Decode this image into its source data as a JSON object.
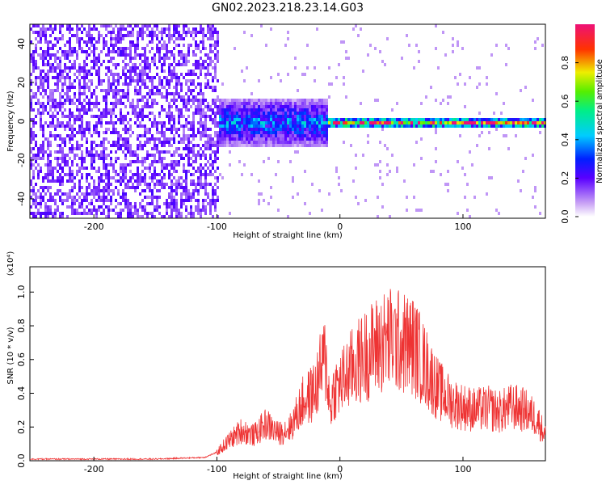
{
  "title": "GN02.2023.218.23.14.G03",
  "chart_data": [
    {
      "type": "heatmap",
      "xlabel": "Height of straight line (km)",
      "ylabel": "Frequency (Hz)",
      "xlim": [
        -252,
        167
      ],
      "ylim": [
        -50,
        50
      ],
      "xticks": [
        -200,
        -100,
        0,
        100
      ],
      "yticks": [
        -40,
        -20,
        0,
        20,
        40
      ],
      "colorbar": {
        "label": "Normalized spectral amplitude",
        "ticks": [
          "0.0",
          "0.2",
          "0.4",
          "0.6",
          "0.8"
        ],
        "range": [
          0,
          1
        ]
      },
      "regions": [
        {
          "x_range": [
            -252,
            -100
          ],
          "description_values": {
            "freq_spread_hz": 50,
            "amplitude": 0.15
          }
        },
        {
          "x_range": [
            -100,
            -10
          ],
          "description_values": {
            "freq_spread_hz": 10,
            "amplitude": 0.35
          }
        },
        {
          "x_range": [
            -10,
            167
          ],
          "description_values": {
            "freq_spread_hz": 2,
            "amplitude": 0.85
          }
        }
      ]
    },
    {
      "type": "line",
      "xlabel": "Height of straight line (km)",
      "ylabel": "SNR (10 * v/v)",
      "scale_note": "(x10⁴)",
      "xlim": [
        -252,
        167
      ],
      "ylim": [
        0,
        1.15
      ],
      "xticks": [
        -200,
        -100,
        0,
        100
      ],
      "yticks": [
        "0.0",
        "0.2",
        "0.4",
        "0.6",
        "0.8",
        "1.0"
      ],
      "color": "#ee3333",
      "series": [
        {
          "x": [
            -252,
            -200,
            -150,
            -110,
            -100,
            -90,
            -80,
            -70,
            -60,
            -50,
            -40,
            -30,
            -25,
            -20,
            -15,
            -12,
            -10,
            -8,
            -5,
            0,
            10,
            20,
            30,
            40,
            50,
            60,
            70,
            80,
            90,
            100,
            110,
            120,
            130,
            140,
            150,
            160,
            167
          ],
          "values": [
            0.01,
            0.01,
            0.01,
            0.02,
            0.05,
            0.12,
            0.18,
            0.15,
            0.22,
            0.16,
            0.2,
            0.35,
            0.38,
            0.42,
            0.55,
            0.6,
            0.5,
            0.3,
            0.42,
            0.45,
            0.55,
            0.62,
            0.68,
            0.72,
            0.7,
            0.68,
            0.55,
            0.42,
            0.35,
            0.32,
            0.3,
            0.31,
            0.29,
            0.32,
            0.3,
            0.25,
            0.15
          ]
        }
      ]
    }
  ]
}
